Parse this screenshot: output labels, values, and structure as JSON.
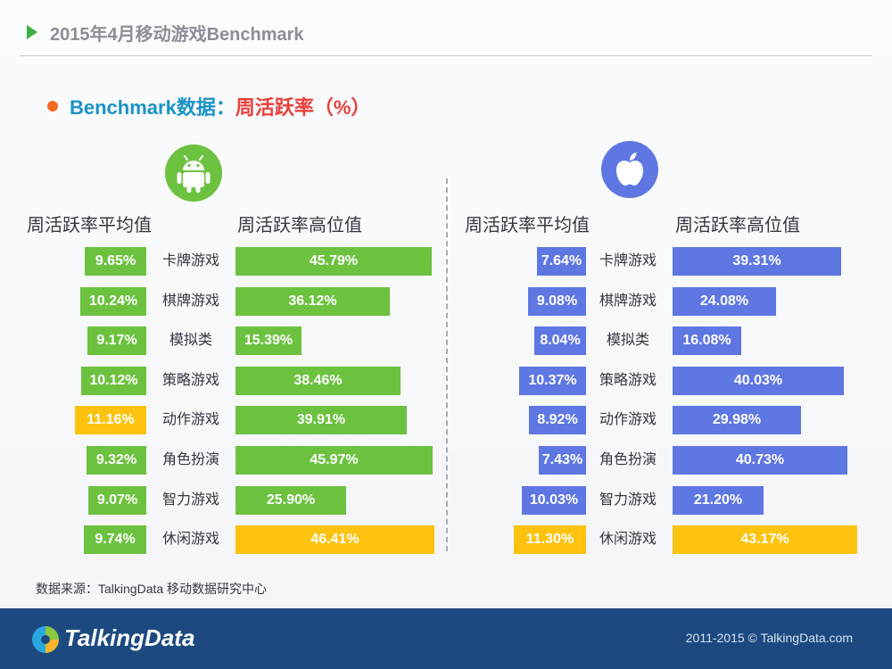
{
  "header": {
    "title": "2015年4月移动游戏Benchmark",
    "subtitle_prefix": "Benchmark数据：",
    "subtitle_metric": "周活跃率（%）"
  },
  "colors": {
    "android": "#6cc23f",
    "ios": "#5f77e3",
    "highlight": "#ffc20e"
  },
  "chart_data": {
    "type": "bar",
    "categories": [
      "卡牌游戏",
      "棋牌游戏",
      "模拟类",
      "策略游戏",
      "动作游戏",
      "角色扮演",
      "智力游戏",
      "休闲游戏"
    ],
    "panels": [
      {
        "platform": "android",
        "icon": "android-icon",
        "avg_label": "周活跃率平均值",
        "high_label": "周活跃率高位值",
        "avg_values": [
          9.65,
          10.24,
          9.17,
          10.12,
          11.16,
          9.32,
          9.07,
          9.74
        ],
        "avg_texts": [
          "9.65%",
          "10.24%",
          "9.17%",
          "10.12%",
          "11.16%",
          "9.32%",
          "9.07%",
          "9.74%"
        ],
        "avg_highlight_index": 4,
        "high_values": [
          45.79,
          36.12,
          15.39,
          38.46,
          39.91,
          45.97,
          25.9,
          46.41
        ],
        "high_texts": [
          "45.79%",
          "36.12%",
          "15.39%",
          "38.46%",
          "39.91%",
          "45.97%",
          "25.90%",
          "46.41%"
        ],
        "high_highlight_index": 7
      },
      {
        "platform": "ios",
        "icon": "apple-icon",
        "avg_label": "周活跃率平均值",
        "high_label": "周活跃率高位值",
        "avg_values": [
          7.64,
          9.08,
          8.04,
          10.37,
          8.92,
          7.43,
          10.03,
          11.3
        ],
        "avg_texts": [
          "7.64%",
          "9.08%",
          "8.04%",
          "10.37%",
          "8.92%",
          "7.43%",
          "10.03%",
          "11.30%"
        ],
        "avg_highlight_index": 7,
        "high_values": [
          39.31,
          24.08,
          16.08,
          40.03,
          29.98,
          40.73,
          21.2,
          43.17
        ],
        "high_texts": [
          "39.31%",
          "24.08%",
          "16.08%",
          "40.03%",
          "29.98%",
          "40.73%",
          "21.20%",
          "43.17%"
        ],
        "high_highlight_index": 7
      }
    ]
  },
  "source": "数据来源：TalkingData 移动数据研究中心",
  "footer": {
    "brand": "TalkingData",
    "copyright": "2011-2015 © TalkingData.com",
    "logo_icon": "talkingdata-logo-icon"
  }
}
